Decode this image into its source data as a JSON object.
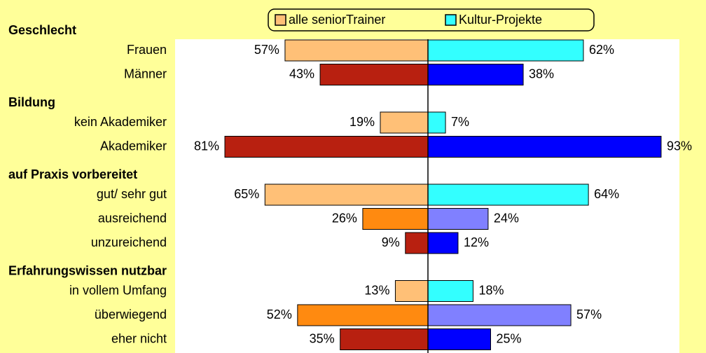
{
  "chart_data": {
    "type": "butterfly-bar",
    "groups": [
      {
        "label": "Geschlecht",
        "categories": [
          "Frauen",
          "Männer"
        ]
      },
      {
        "label": "Bildung",
        "categories": [
          "kein Akademiker",
          "Akademiker"
        ]
      },
      {
        "label": "auf Praxis vorbereitet",
        "categories": [
          "gut/ sehr gut",
          "ausreichend",
          "unzureichend"
        ]
      },
      {
        "label": "Erfahrungswissen nutzbar",
        "categories": [
          "in vollem Umfang",
          "überwiegend",
          "eher nicht"
        ]
      }
    ],
    "series": [
      {
        "name": "alle seniorTrainer",
        "color": "#ffc077",
        "side": "left",
        "values": [
          57,
          43,
          19,
          81,
          65,
          26,
          9,
          13,
          52,
          35
        ],
        "value_labels": [
          "57%",
          "43%",
          "19%",
          "81%",
          "65%",
          "26%",
          "9%",
          "13%",
          "52%",
          "35%"
        ],
        "colors": [
          "#ffc077",
          "#b82010",
          "#ffc077",
          "#b82010",
          "#ffc077",
          "#ff8a10",
          "#b82010",
          "#ffc077",
          "#ff8a10",
          "#b82010"
        ]
      },
      {
        "name": "Kultur-Projekte",
        "color": "#33ffff",
        "side": "right",
        "values": [
          62,
          38,
          7,
          93,
          64,
          24,
          12,
          18,
          57,
          25
        ],
        "value_labels": [
          "62%",
          "38%",
          "7%",
          "93%",
          "64%",
          "24%",
          "12%",
          "18%",
          "57%",
          "25%"
        ],
        "colors": [
          "#33ffff",
          "#0000ff",
          "#33ffff",
          "#0000ff",
          "#33ffff",
          "#8080ff",
          "#0000ff",
          "#33ffff",
          "#8080ff",
          "#0000ff"
        ]
      }
    ],
    "xlim": [
      0,
      100
    ],
    "legend": "top"
  }
}
